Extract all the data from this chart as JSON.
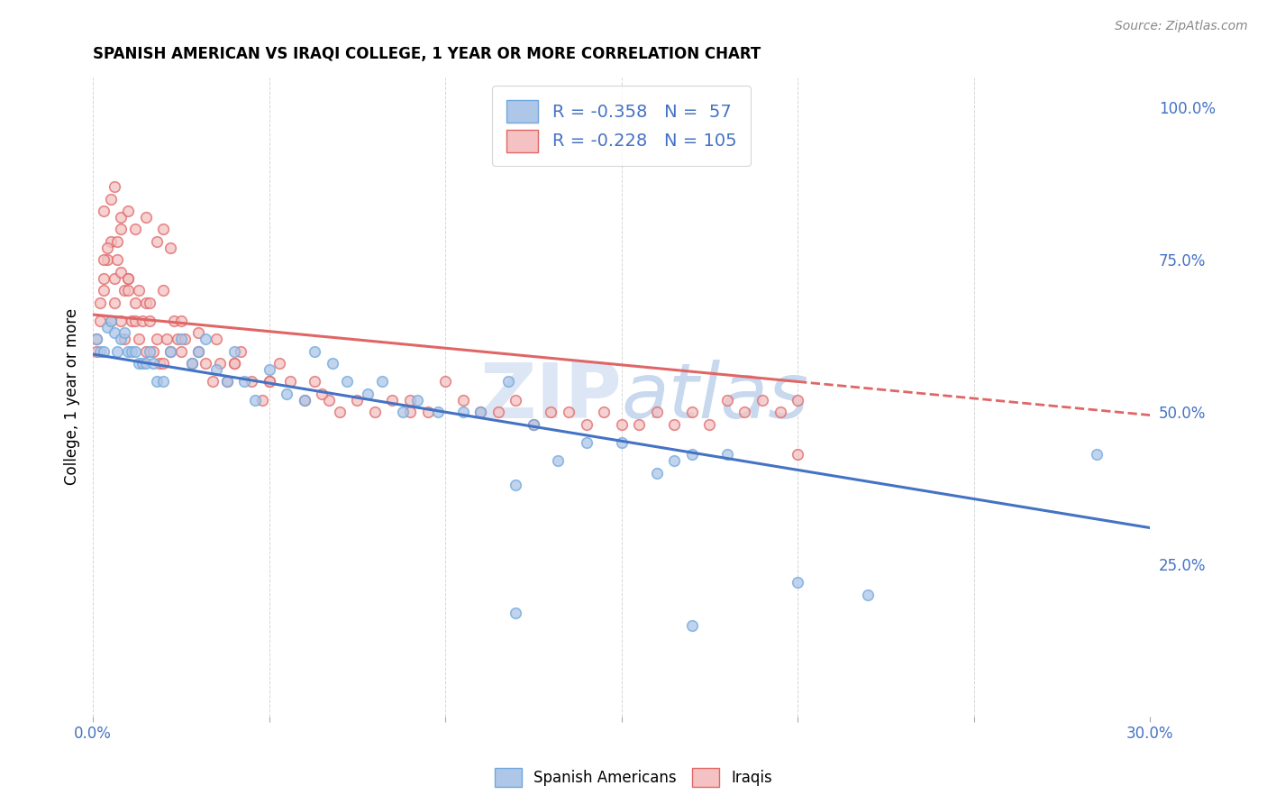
{
  "title": "SPANISH AMERICAN VS IRAQI COLLEGE, 1 YEAR OR MORE CORRELATION CHART",
  "source": "Source: ZipAtlas.com",
  "ylabel": "College, 1 year or more",
  "watermark": "ZIPatlas",
  "xlim": [
    0.0,
    0.3
  ],
  "ylim": [
    0.0,
    1.05
  ],
  "xtick_pos": [
    0.0,
    0.05,
    0.1,
    0.15,
    0.2,
    0.25,
    0.3
  ],
  "xtick_labels": [
    "0.0%",
    "",
    "",
    "",
    "",
    "",
    "30.0%"
  ],
  "ytick_pos": [
    0.25,
    0.5,
    0.75,
    1.0
  ],
  "ytick_labels": [
    "25.0%",
    "50.0%",
    "75.0%",
    "100.0%"
  ],
  "legend_line1": "R = -0.358   N =  57",
  "legend_line2": "R = -0.228   N = 105",
  "color_blue_fill": "#aec6e8",
  "color_blue_edge": "#6fa8dc",
  "color_pink_fill": "#f4c2c2",
  "color_pink_edge": "#e06666",
  "color_blue_line": "#4472c4",
  "color_pink_line": "#e06666",
  "color_text_blue": "#4472c4",
  "color_grid": "#cccccc",
  "color_watermark": "#dce6f5",
  "blue_intercept": 0.595,
  "blue_slope": -0.95,
  "pink_intercept": 0.66,
  "pink_slope": -0.55,
  "spanish_x": [
    0.001,
    0.002,
    0.003,
    0.004,
    0.005,
    0.006,
    0.007,
    0.008,
    0.009,
    0.01,
    0.011,
    0.012,
    0.013,
    0.014,
    0.015,
    0.016,
    0.017,
    0.018,
    0.02,
    0.022,
    0.025,
    0.028,
    0.03,
    0.032,
    0.035,
    0.038,
    0.04,
    0.043,
    0.046,
    0.05,
    0.055,
    0.06,
    0.063,
    0.068,
    0.072,
    0.078,
    0.082,
    0.088,
    0.092,
    0.098,
    0.105,
    0.11,
    0.118,
    0.125,
    0.132,
    0.14,
    0.15,
    0.16,
    0.17,
    0.18,
    0.12,
    0.17,
    0.2,
    0.22,
    0.12,
    0.165,
    0.285
  ],
  "spanish_y": [
    0.62,
    0.6,
    0.6,
    0.64,
    0.65,
    0.63,
    0.6,
    0.62,
    0.63,
    0.6,
    0.6,
    0.6,
    0.58,
    0.58,
    0.58,
    0.6,
    0.58,
    0.55,
    0.55,
    0.6,
    0.62,
    0.58,
    0.6,
    0.62,
    0.57,
    0.55,
    0.6,
    0.55,
    0.52,
    0.57,
    0.53,
    0.52,
    0.6,
    0.58,
    0.55,
    0.53,
    0.55,
    0.5,
    0.52,
    0.5,
    0.5,
    0.5,
    0.55,
    0.48,
    0.42,
    0.45,
    0.45,
    0.4,
    0.43,
    0.43,
    0.17,
    0.15,
    0.22,
    0.2,
    0.38,
    0.42,
    0.43
  ],
  "iraqi_x": [
    0.001,
    0.001,
    0.002,
    0.002,
    0.003,
    0.003,
    0.004,
    0.005,
    0.005,
    0.006,
    0.006,
    0.007,
    0.007,
    0.008,
    0.008,
    0.009,
    0.009,
    0.01,
    0.01,
    0.011,
    0.012,
    0.012,
    0.013,
    0.014,
    0.015,
    0.015,
    0.016,
    0.017,
    0.018,
    0.019,
    0.02,
    0.021,
    0.022,
    0.023,
    0.024,
    0.025,
    0.026,
    0.028,
    0.03,
    0.032,
    0.034,
    0.036,
    0.038,
    0.04,
    0.042,
    0.045,
    0.048,
    0.05,
    0.053,
    0.056,
    0.06,
    0.063,
    0.067,
    0.07,
    0.075,
    0.08,
    0.085,
    0.09,
    0.095,
    0.1,
    0.105,
    0.11,
    0.115,
    0.12,
    0.125,
    0.13,
    0.135,
    0.14,
    0.145,
    0.15,
    0.155,
    0.16,
    0.165,
    0.17,
    0.175,
    0.18,
    0.185,
    0.19,
    0.195,
    0.2,
    0.003,
    0.005,
    0.006,
    0.008,
    0.01,
    0.012,
    0.015,
    0.018,
    0.02,
    0.022,
    0.003,
    0.004,
    0.008,
    0.01,
    0.013,
    0.016,
    0.02,
    0.025,
    0.03,
    0.035,
    0.2,
    0.04,
    0.05,
    0.065,
    0.09
  ],
  "iraqi_y": [
    0.6,
    0.62,
    0.65,
    0.68,
    0.7,
    0.72,
    0.75,
    0.78,
    0.65,
    0.68,
    0.72,
    0.75,
    0.78,
    0.8,
    0.65,
    0.7,
    0.62,
    0.7,
    0.72,
    0.65,
    0.68,
    0.65,
    0.62,
    0.65,
    0.68,
    0.6,
    0.65,
    0.6,
    0.62,
    0.58,
    0.58,
    0.62,
    0.6,
    0.65,
    0.62,
    0.6,
    0.62,
    0.58,
    0.6,
    0.58,
    0.55,
    0.58,
    0.55,
    0.58,
    0.6,
    0.55,
    0.52,
    0.55,
    0.58,
    0.55,
    0.52,
    0.55,
    0.52,
    0.5,
    0.52,
    0.5,
    0.52,
    0.52,
    0.5,
    0.55,
    0.52,
    0.5,
    0.5,
    0.52,
    0.48,
    0.5,
    0.5,
    0.48,
    0.5,
    0.48,
    0.48,
    0.5,
    0.48,
    0.5,
    0.48,
    0.52,
    0.5,
    0.52,
    0.5,
    0.52,
    0.83,
    0.85,
    0.87,
    0.82,
    0.83,
    0.8,
    0.82,
    0.78,
    0.8,
    0.77,
    0.75,
    0.77,
    0.73,
    0.72,
    0.7,
    0.68,
    0.7,
    0.65,
    0.63,
    0.62,
    0.43,
    0.58,
    0.55,
    0.53,
    0.5
  ]
}
